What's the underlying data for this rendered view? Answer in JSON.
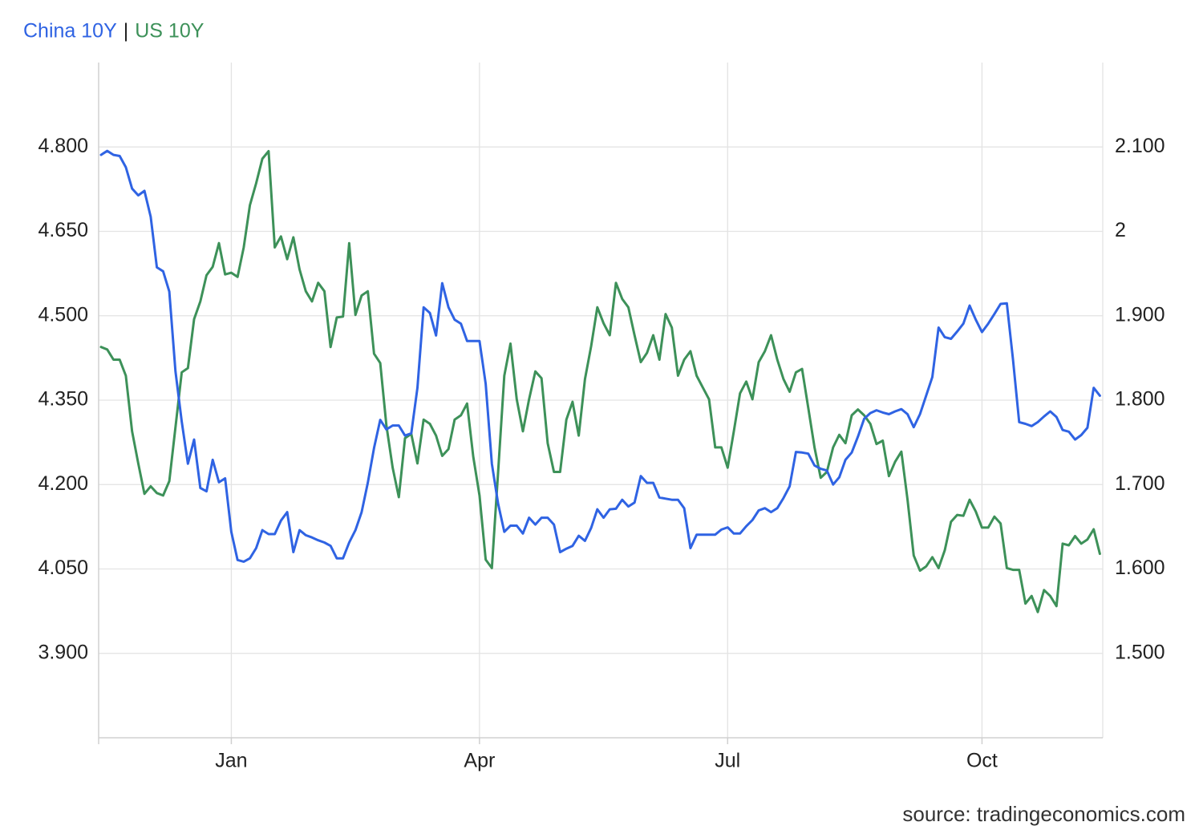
{
  "chart_data": {
    "type": "line",
    "legend_separator": "|",
    "source": "source: tradingeconomics.com",
    "grid": true,
    "categories": [
      null,
      null,
      null,
      null,
      null,
      null,
      null,
      null,
      null,
      null,
      null,
      null,
      null,
      null,
      null,
      null,
      null,
      null,
      null,
      null,
      null,
      "Jan",
      null,
      null,
      null,
      null,
      null,
      null,
      null,
      null,
      null,
      null,
      null,
      null,
      null,
      null,
      null,
      null,
      null,
      null,
      null,
      null,
      null,
      null,
      null,
      null,
      null,
      null,
      null,
      null,
      null,
      null,
      null,
      null,
      null,
      null,
      null,
      null,
      null,
      null,
      null,
      "Apr",
      null,
      null,
      null,
      null,
      null,
      null,
      null,
      null,
      null,
      null,
      null,
      null,
      null,
      null,
      null,
      null,
      null,
      null,
      null,
      null,
      null,
      null,
      null,
      null,
      null,
      null,
      null,
      null,
      null,
      null,
      null,
      null,
      null,
      null,
      null,
      null,
      null,
      null,
      null,
      "Jul",
      null,
      null,
      null,
      null,
      null,
      null,
      null,
      null,
      null,
      null,
      null,
      null,
      null,
      null,
      null,
      null,
      null,
      null,
      null,
      null,
      null,
      null,
      null,
      null,
      null,
      null,
      null,
      null,
      null,
      null,
      null,
      null,
      null,
      null,
      null,
      null,
      null,
      null,
      null,
      null,
      "Oct",
      null,
      null,
      null,
      null,
      null,
      null,
      null,
      null,
      null,
      null,
      null,
      null,
      null,
      null,
      null,
      null,
      null,
      null,
      null
    ],
    "ylim": [
      3.75,
      4.95
    ],
    "yticks": [
      {
        "value": 3.9,
        "label": "3.900"
      },
      {
        "value": 4.05,
        "label": "4.050"
      },
      {
        "value": 4.2,
        "label": "4.200"
      },
      {
        "value": 4.35,
        "label": "4.350"
      },
      {
        "value": 4.5,
        "label": "4.500"
      },
      {
        "value": 4.65,
        "label": "4.650"
      },
      {
        "value": 4.8,
        "label": "4.800"
      }
    ],
    "y2lim": [
      1.4,
      2.2
    ],
    "y2ticks": [
      {
        "value": 1.5,
        "label": "1.500"
      },
      {
        "value": 1.6,
        "label": "1.600"
      },
      {
        "value": 1.7,
        "label": "1.700"
      },
      {
        "value": 1.8,
        "label": "1.800"
      },
      {
        "value": 1.9,
        "label": "1.900"
      },
      2,
      {
        "value": 2.1,
        "label": "2.100"
      }
    ],
    "series": [
      {
        "name": "China 10Y",
        "color": "#2f63e3",
        "values": [
          4.786,
          4.793,
          4.786,
          4.784,
          4.764,
          4.726,
          4.714,
          4.722,
          4.676,
          4.586,
          4.579,
          4.543,
          4.401,
          4.312,
          4.237,
          4.28,
          4.194,
          4.188,
          4.244,
          4.204,
          4.211,
          4.116,
          4.066,
          4.063,
          4.069,
          4.087,
          4.119,
          4.112,
          4.112,
          4.136,
          4.151,
          4.08,
          4.119,
          4.11,
          4.106,
          4.101,
          4.097,
          4.091,
          4.069,
          4.069,
          4.097,
          4.119,
          4.151,
          4.203,
          4.265,
          4.315,
          4.298,
          4.305,
          4.305,
          4.287,
          4.291,
          4.372,
          4.515,
          4.505,
          4.465,
          4.558,
          4.515,
          4.493,
          4.486,
          4.455,
          4.455,
          4.455,
          4.379,
          4.237,
          4.166,
          4.116,
          4.127,
          4.127,
          4.113,
          4.141,
          4.129,
          4.141,
          4.141,
          4.129,
          4.08,
          4.086,
          4.091,
          4.109,
          4.1,
          4.123,
          4.156,
          4.141,
          4.156,
          4.157,
          4.173,
          4.161,
          4.168,
          4.215,
          4.203,
          4.203,
          4.177,
          4.175,
          4.173,
          4.173,
          4.158,
          4.087,
          4.111,
          4.111,
          4.111,
          4.111,
          4.12,
          4.124,
          4.113,
          4.113,
          4.126,
          4.137,
          4.154,
          4.158,
          4.151,
          4.158,
          4.176,
          4.197,
          4.258,
          4.257,
          4.255,
          4.234,
          4.228,
          4.225,
          4.2,
          4.213,
          4.244,
          4.257,
          4.285,
          4.317,
          4.327,
          4.332,
          4.328,
          4.325,
          4.33,
          4.334,
          4.325,
          4.302,
          4.325,
          4.358,
          4.391,
          4.479,
          4.462,
          4.459,
          4.472,
          4.486,
          4.518,
          4.493,
          4.471,
          4.486,
          4.503,
          4.521,
          4.522,
          4.422,
          4.311,
          4.308,
          4.304,
          4.311,
          4.321,
          4.33,
          4.32,
          4.297,
          4.294,
          4.28,
          4.288,
          4.301,
          4.372,
          4.358
        ]
      },
      {
        "name": "US 10Y",
        "color": "#3d9159",
        "axis": "y2",
        "values": [
          1.863,
          1.86,
          1.848,
          1.848,
          1.829,
          1.763,
          1.725,
          1.689,
          1.698,
          1.69,
          1.687,
          1.704,
          1.768,
          1.833,
          1.838,
          1.896,
          1.917,
          1.948,
          1.958,
          1.986,
          1.949,
          1.951,
          1.946,
          1.981,
          2.031,
          2.057,
          2.086,
          2.095,
          1.981,
          1.994,
          1.967,
          1.993,
          1.955,
          1.929,
          1.917,
          1.939,
          1.929,
          1.863,
          1.898,
          1.899,
          1.986,
          1.901,
          1.924,
          1.929,
          1.855,
          1.844,
          1.77,
          1.72,
          1.685,
          1.755,
          1.76,
          1.725,
          1.777,
          1.772,
          1.758,
          1.734,
          1.742,
          1.777,
          1.782,
          1.796,
          1.733,
          1.687,
          1.611,
          1.601,
          1.715,
          1.829,
          1.867,
          1.801,
          1.763,
          1.801,
          1.834,
          1.826,
          1.749,
          1.715,
          1.715,
          1.777,
          1.798,
          1.758,
          1.825,
          1.864,
          1.91,
          1.891,
          1.877,
          1.939,
          1.92,
          1.91,
          1.877,
          1.845,
          1.856,
          1.877,
          1.848,
          1.902,
          1.886,
          1.829,
          1.848,
          1.858,
          1.829,
          1.815,
          1.801,
          1.744,
          1.744,
          1.72,
          1.763,
          1.808,
          1.822,
          1.801,
          1.845,
          1.858,
          1.877,
          1.848,
          1.825,
          1.81,
          1.833,
          1.837,
          1.791,
          1.744,
          1.708,
          1.715,
          1.744,
          1.759,
          1.749,
          1.782,
          1.789,
          1.782,
          1.772,
          1.748,
          1.752,
          1.71,
          1.727,
          1.739,
          1.682,
          1.616,
          1.598,
          1.603,
          1.614,
          1.601,
          1.622,
          1.656,
          1.664,
          1.663,
          1.682,
          1.668,
          1.649,
          1.649,
          1.662,
          1.654,
          1.601,
          1.599,
          1.599,
          1.559,
          1.568,
          1.549,
          1.575,
          1.568,
          1.556,
          1.63,
          1.628,
          1.639,
          1.63,
          1.635,
          1.647,
          1.618
        ]
      }
    ]
  }
}
